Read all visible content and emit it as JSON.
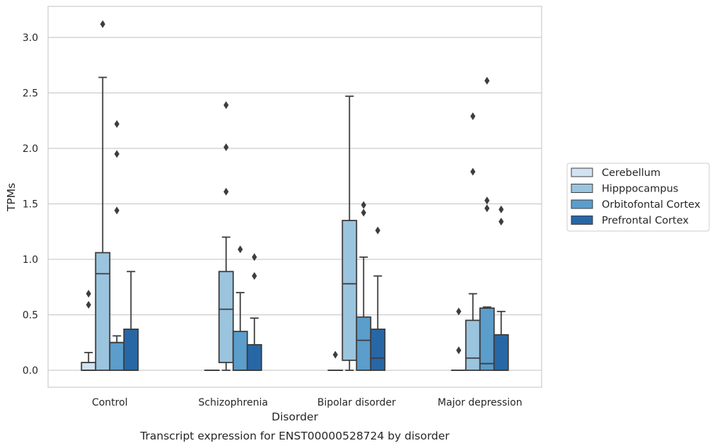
{
  "chart_data": {
    "type": "boxplot",
    "title": "",
    "caption": "Transcript expression for ENST00000528724 by disorder",
    "xlabel": "Disorder",
    "ylabel": "TPMs",
    "ylim": [
      -0.15,
      3.3
    ],
    "yticks": [
      0.0,
      0.5,
      1.0,
      1.5,
      2.0,
      2.5,
      3.0
    ],
    "ytick_labels": [
      "0.0",
      "0.5",
      "1.0",
      "1.5",
      "2.0",
      "2.5",
      "3.0"
    ],
    "grid": "horizontal",
    "legend_position": "right",
    "categories": [
      "Control",
      "Schizophrenia",
      "Bipolar disorder",
      "Major depression"
    ],
    "series": [
      {
        "name": "Cerebellum",
        "color": "#d1e2f2",
        "boxes": [
          {
            "q1": 0.0,
            "median": 0.0,
            "q3": 0.07,
            "whislo": 0.0,
            "whishi": 0.16,
            "fliers": [
              0.69,
              0.59
            ]
          },
          {
            "q1": 0.0,
            "median": 0.0,
            "q3": 0.0,
            "whislo": 0.0,
            "whishi": 0.0,
            "fliers": []
          },
          {
            "q1": 0.0,
            "median": 0.0,
            "q3": 0.0,
            "whislo": 0.0,
            "whishi": 0.0,
            "fliers": [
              0.14
            ]
          },
          {
            "q1": 0.0,
            "median": 0.0,
            "q3": 0.0,
            "whislo": 0.0,
            "whishi": 0.0,
            "fliers": [
              0.53,
              0.18
            ]
          }
        ]
      },
      {
        "name": "Hipppocampus",
        "color": "#9bc4de",
        "boxes": [
          {
            "q1": 0.0,
            "median": 0.87,
            "q3": 1.06,
            "whislo": 0.0,
            "whishi": 2.64,
            "fliers": [
              3.12
            ]
          },
          {
            "q1": 0.07,
            "median": 0.55,
            "q3": 0.89,
            "whislo": 0.0,
            "whishi": 1.2,
            "fliers": [
              2.39,
              2.01,
              1.61
            ]
          },
          {
            "q1": 0.09,
            "median": 0.78,
            "q3": 1.35,
            "whislo": 0.0,
            "whishi": 2.47,
            "fliers": []
          },
          {
            "q1": 0.0,
            "median": 0.11,
            "q3": 0.45,
            "whislo": 0.0,
            "whishi": 0.69,
            "fliers": [
              2.29,
              1.79
            ]
          }
        ]
      },
      {
        "name": "Orbitofontal Cortex",
        "color": "#5b9dcb",
        "boxes": [
          {
            "q1": 0.0,
            "median": 0.25,
            "q3": 0.25,
            "whislo": 0.0,
            "whishi": 0.31,
            "fliers": [
              2.22,
              1.95,
              1.44
            ]
          },
          {
            "q1": 0.0,
            "median": 0.0,
            "q3": 0.35,
            "whislo": 0.0,
            "whishi": 0.7,
            "fliers": [
              1.09
            ]
          },
          {
            "q1": 0.0,
            "median": 0.27,
            "q3": 0.48,
            "whislo": 0.0,
            "whishi": 1.02,
            "fliers": [
              1.49,
              1.42
            ]
          },
          {
            "q1": 0.0,
            "median": 0.06,
            "q3": 0.56,
            "whislo": 0.0,
            "whishi": 0.57,
            "fliers": [
              2.61,
              1.53,
              1.46
            ]
          }
        ]
      },
      {
        "name": "Prefrontal Cortex",
        "color": "#2867a6",
        "boxes": [
          {
            "q1": 0.0,
            "median": 0.0,
            "q3": 0.37,
            "whislo": 0.0,
            "whishi": 0.89,
            "fliers": []
          },
          {
            "q1": 0.0,
            "median": 0.0,
            "q3": 0.23,
            "whislo": 0.0,
            "whishi": 0.47,
            "fliers": [
              1.02,
              0.85
            ]
          },
          {
            "q1": 0.0,
            "median": 0.11,
            "q3": 0.37,
            "whislo": 0.0,
            "whishi": 0.85,
            "fliers": [
              1.26
            ]
          },
          {
            "q1": 0.0,
            "median": 0.0,
            "q3": 0.32,
            "whislo": 0.0,
            "whishi": 0.53,
            "fliers": [
              1.45,
              1.34
            ]
          }
        ]
      }
    ]
  }
}
